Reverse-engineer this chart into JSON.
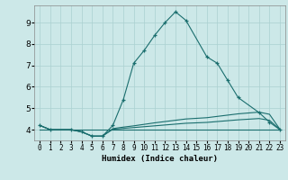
{
  "xlabel": "Humidex (Indice chaleur)",
  "background_color": "#cce8e8",
  "grid_color": "#aad0d0",
  "line_color": "#1a6e6e",
  "xlim": [
    -0.5,
    23.5
  ],
  "ylim": [
    3.5,
    9.8
  ],
  "yticks": [
    4,
    5,
    6,
    7,
    8,
    9
  ],
  "xticks": [
    0,
    1,
    2,
    3,
    4,
    5,
    6,
    7,
    8,
    9,
    10,
    11,
    12,
    13,
    14,
    15,
    16,
    17,
    18,
    19,
    20,
    21,
    22,
    23
  ],
  "series": [
    {
      "x": [
        0,
        1,
        3,
        4,
        5,
        6,
        7,
        8,
        9,
        10,
        11,
        12,
        13,
        14,
        16,
        17,
        18,
        19,
        21,
        22,
        23
      ],
      "y": [
        4.2,
        4.0,
        4.0,
        3.9,
        3.7,
        3.7,
        4.2,
        5.4,
        7.1,
        7.7,
        8.4,
        9.0,
        9.5,
        9.1,
        7.4,
        7.1,
        6.3,
        5.5,
        4.8,
        4.35,
        4.0
      ],
      "marker": "+"
    },
    {
      "x": [
        0,
        1,
        3,
        4,
        5,
        6,
        7,
        8,
        9,
        10,
        11,
        12,
        13,
        14,
        16,
        17,
        18,
        19,
        21,
        22,
        23
      ],
      "y": [
        4.2,
        4.0,
        4.0,
        3.9,
        3.7,
        3.7,
        4.05,
        4.12,
        4.18,
        4.25,
        4.32,
        4.38,
        4.44,
        4.5,
        4.56,
        4.62,
        4.68,
        4.74,
        4.82,
        4.72,
        4.02
      ],
      "marker": null
    },
    {
      "x": [
        0,
        23
      ],
      "y": [
        4.0,
        4.0
      ],
      "marker": null
    },
    {
      "x": [
        0,
        1,
        3,
        4,
        5,
        6,
        7,
        8,
        9,
        10,
        11,
        12,
        13,
        14,
        16,
        17,
        18,
        19,
        21,
        22,
        23
      ],
      "y": [
        4.2,
        4.0,
        4.0,
        3.9,
        3.7,
        3.7,
        4.02,
        4.06,
        4.1,
        4.14,
        4.18,
        4.22,
        4.26,
        4.3,
        4.34,
        4.38,
        4.42,
        4.46,
        4.52,
        4.44,
        4.01
      ],
      "marker": null
    }
  ]
}
